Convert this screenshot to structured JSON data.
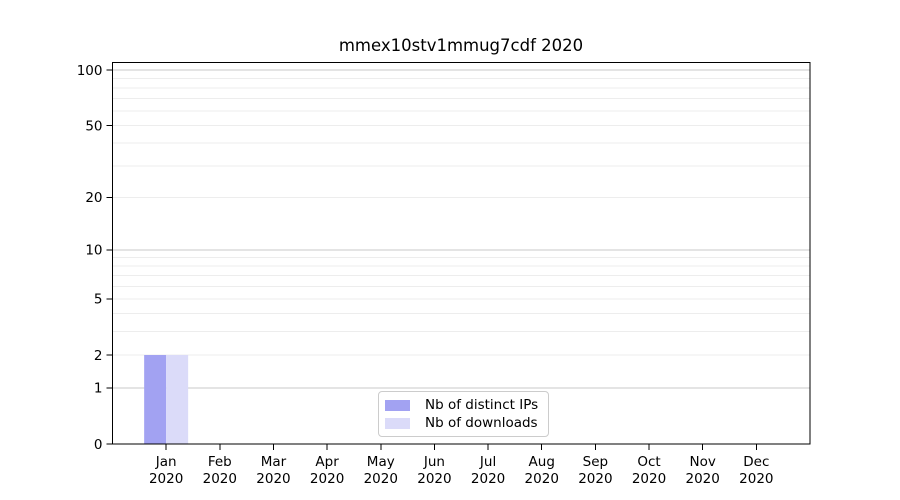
{
  "chart_data": {
    "type": "bar",
    "title": "mmex10stv1mmug7cdf 2020",
    "categories": [
      "Jan",
      "Feb",
      "Mar",
      "Apr",
      "May",
      "Jun",
      "Jul",
      "Aug",
      "Sep",
      "Oct",
      "Nov",
      "Dec"
    ],
    "year": "2020",
    "series": [
      {
        "name": "Nb of distinct IPs",
        "color": "#a2a2f2",
        "values": [
          2,
          0,
          0,
          0,
          0,
          0,
          0,
          0,
          0,
          0,
          0,
          0
        ]
      },
      {
        "name": "Nb of downloads",
        "color": "#dbdbf9",
        "values": [
          2,
          0,
          0,
          0,
          0,
          0,
          0,
          0,
          0,
          0,
          0,
          0
        ]
      }
    ],
    "yscale": "log1p",
    "yticks": [
      0,
      1,
      2,
      5,
      10,
      20,
      50,
      100
    ],
    "ylim": [
      0,
      110
    ],
    "gridlines": {
      "major": [
        1,
        10,
        100
      ],
      "minor": [
        2,
        3,
        4,
        5,
        6,
        7,
        8,
        9,
        20,
        30,
        40,
        50,
        60,
        70,
        80,
        90
      ]
    },
    "grid": true,
    "legend_position": "lower center"
  },
  "colors": {
    "grid_major": "#c9c9c9",
    "grid_minor": "#ededed",
    "axis": "#000000",
    "text": "#000000",
    "background": "#ffffff"
  }
}
